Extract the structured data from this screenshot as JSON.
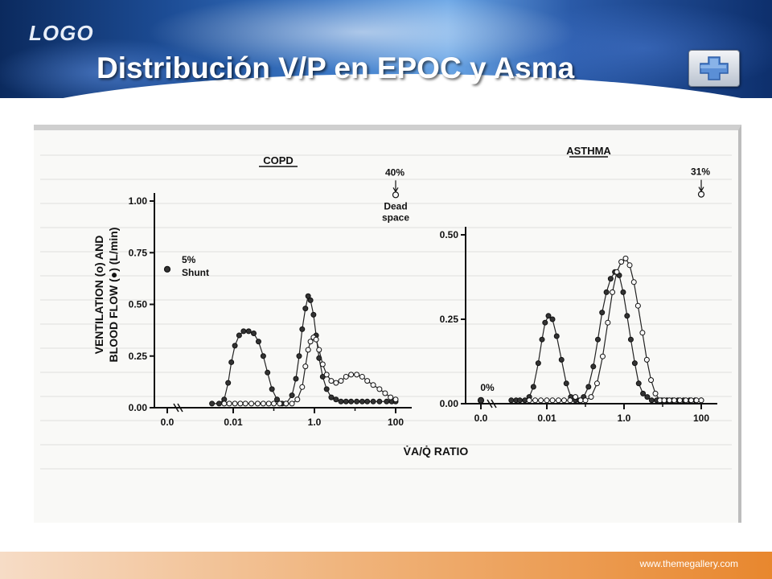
{
  "header": {
    "logo": "LOGO",
    "title": "Distribución V/P en EPOC y Asma",
    "button_icon": "plus-icon"
  },
  "footer": {
    "url": "www.themegallery.com"
  },
  "colors": {
    "accent_blue": "#1d4d96",
    "footer_orange": "#e8872e"
  },
  "chart_data": [
    {
      "type": "line",
      "title": "COPD",
      "ylabel": "VENTILATION (o) AND BLOOD FLOW (●) (L/min)",
      "xlabel": "V̇A/Q̇ RATIO",
      "x_scale": "log",
      "x_ticks": [
        "0.0",
        "0.01",
        "1.0",
        "100"
      ],
      "y_ticks": [
        "0.00",
        "0.25",
        "0.50",
        "0.75",
        "1.00"
      ],
      "ylim": [
        0,
        1.0
      ],
      "annotations": [
        {
          "text": "5%",
          "text2": "Shunt",
          "x": 0,
          "y": 0.67,
          "marker": "filled"
        },
        {
          "text": "40%",
          "text2": "Dead",
          "text3": "space",
          "x": 100,
          "y": 1.03,
          "marker": "open"
        }
      ],
      "series": [
        {
          "marker": "filled",
          "points": [
            [
              0.003,
              0.02
            ],
            [
              0.0045,
              0.02
            ],
            [
              0.006,
              0.04
            ],
            [
              0.0075,
              0.12
            ],
            [
              0.009,
              0.22
            ],
            [
              0.011,
              0.3
            ],
            [
              0.014,
              0.35
            ],
            [
              0.018,
              0.37
            ],
            [
              0.024,
              0.37
            ],
            [
              0.032,
              0.36
            ],
            [
              0.042,
              0.32
            ],
            [
              0.055,
              0.25
            ],
            [
              0.07,
              0.17
            ],
            [
              0.09,
              0.09
            ],
            [
              0.12,
              0.04
            ],
            [
              0.16,
              0.02
            ],
            [
              0.2,
              0.02
            ],
            [
              0.28,
              0.06
            ],
            [
              0.35,
              0.14
            ],
            [
              0.42,
              0.25
            ],
            [
              0.5,
              0.38
            ],
            [
              0.6,
              0.48
            ],
            [
              0.7,
              0.54
            ],
            [
              0.8,
              0.52
            ],
            [
              0.95,
              0.45
            ],
            [
              1.1,
              0.35
            ],
            [
              1.3,
              0.24
            ],
            [
              1.6,
              0.15
            ],
            [
              2.0,
              0.09
            ],
            [
              2.6,
              0.05
            ],
            [
              3.4,
              0.04
            ],
            [
              4.5,
              0.03
            ],
            [
              6,
              0.03
            ],
            [
              8,
              0.03
            ],
            [
              11,
              0.03
            ],
            [
              15,
              0.03
            ],
            [
              20,
              0.03
            ],
            [
              28,
              0.03
            ],
            [
              40,
              0.03
            ],
            [
              60,
              0.03
            ],
            [
              80,
              0.03
            ],
            [
              100,
              0.03
            ]
          ]
        },
        {
          "marker": "open",
          "points": [
            [
              0.006,
              0.02
            ],
            [
              0.008,
              0.02
            ],
            [
              0.011,
              0.02
            ],
            [
              0.015,
              0.02
            ],
            [
              0.02,
              0.02
            ],
            [
              0.028,
              0.02
            ],
            [
              0.04,
              0.02
            ],
            [
              0.055,
              0.02
            ],
            [
              0.075,
              0.02
            ],
            [
              0.1,
              0.02
            ],
            [
              0.14,
              0.02
            ],
            [
              0.2,
              0.02
            ],
            [
              0.28,
              0.02
            ],
            [
              0.38,
              0.04
            ],
            [
              0.5,
              0.1
            ],
            [
              0.6,
              0.2
            ],
            [
              0.7,
              0.28
            ],
            [
              0.8,
              0.32
            ],
            [
              0.95,
              0.34
            ],
            [
              1.1,
              0.33
            ],
            [
              1.3,
              0.28
            ],
            [
              1.6,
              0.21
            ],
            [
              2.0,
              0.16
            ],
            [
              2.6,
              0.13
            ],
            [
              3.4,
              0.12
            ],
            [
              4.5,
              0.13
            ],
            [
              6,
              0.15
            ],
            [
              8,
              0.16
            ],
            [
              11,
              0.16
            ],
            [
              15,
              0.15
            ],
            [
              20,
              0.13
            ],
            [
              28,
              0.11
            ],
            [
              40,
              0.09
            ],
            [
              55,
              0.07
            ],
            [
              75,
              0.05
            ],
            [
              100,
              0.04
            ]
          ]
        }
      ]
    },
    {
      "type": "line",
      "title": "ASTHMA",
      "x_scale": "log",
      "x_ticks": [
        "0.0",
        "0.01",
        "1.0",
        "100"
      ],
      "y_ticks": [
        "0.00",
        "0.25",
        "0.50"
      ],
      "ylim": [
        0,
        0.5
      ],
      "annotations": [
        {
          "text": "0%",
          "x": 0,
          "y": 0.01,
          "marker": "filled"
        },
        {
          "text": "31%",
          "x": 100,
          "y": 0.62,
          "marker": "open"
        }
      ],
      "series": [
        {
          "marker": "filled",
          "points": [
            [
              0.0012,
              0.01
            ],
            [
              0.0016,
              0.01
            ],
            [
              0.002,
              0.01
            ],
            [
              0.0027,
              0.01
            ],
            [
              0.0035,
              0.02
            ],
            [
              0.0045,
              0.05
            ],
            [
              0.006,
              0.12
            ],
            [
              0.0075,
              0.19
            ],
            [
              0.009,
              0.24
            ],
            [
              0.011,
              0.26
            ],
            [
              0.014,
              0.25
            ],
            [
              0.018,
              0.2
            ],
            [
              0.024,
              0.13
            ],
            [
              0.032,
              0.06
            ],
            [
              0.042,
              0.02
            ],
            [
              0.055,
              0.01
            ],
            [
              0.07,
              0.01
            ],
            [
              0.09,
              0.02
            ],
            [
              0.12,
              0.05
            ],
            [
              0.16,
              0.11
            ],
            [
              0.21,
              0.19
            ],
            [
              0.27,
              0.27
            ],
            [
              0.35,
              0.33
            ],
            [
              0.45,
              0.37
            ],
            [
              0.58,
              0.39
            ],
            [
              0.75,
              0.38
            ],
            [
              0.95,
              0.33
            ],
            [
              1.2,
              0.26
            ],
            [
              1.5,
              0.19
            ],
            [
              1.9,
              0.12
            ],
            [
              2.4,
              0.06
            ],
            [
              3.1,
              0.03
            ],
            [
              4,
              0.02
            ],
            [
              5.2,
              0.01
            ],
            [
              7,
              0.01
            ],
            [
              9.5,
              0.01
            ],
            [
              13,
              0.01
            ],
            [
              18,
              0.01
            ],
            [
              25,
              0.01
            ],
            [
              35,
              0.01
            ],
            [
              50,
              0.01
            ],
            [
              70,
              0.01
            ],
            [
              100,
              0.01
            ]
          ]
        },
        {
          "marker": "open",
          "points": [
            [
              0.0035,
              0.01
            ],
            [
              0.005,
              0.01
            ],
            [
              0.007,
              0.01
            ],
            [
              0.01,
              0.01
            ],
            [
              0.014,
              0.01
            ],
            [
              0.02,
              0.01
            ],
            [
              0.028,
              0.01
            ],
            [
              0.04,
              0.01
            ],
            [
              0.055,
              0.02
            ],
            [
              0.075,
              0.01
            ],
            [
              0.1,
              0.01
            ],
            [
              0.14,
              0.02
            ],
            [
              0.2,
              0.06
            ],
            [
              0.28,
              0.14
            ],
            [
              0.38,
              0.24
            ],
            [
              0.5,
              0.33
            ],
            [
              0.65,
              0.39
            ],
            [
              0.85,
              0.42
            ],
            [
              1.1,
              0.43
            ],
            [
              1.4,
              0.41
            ],
            [
              1.8,
              0.36
            ],
            [
              2.3,
              0.29
            ],
            [
              3,
              0.21
            ],
            [
              3.9,
              0.13
            ],
            [
              5,
              0.07
            ],
            [
              6.5,
              0.03
            ],
            [
              8.5,
              0.01
            ],
            [
              11,
              0.01
            ],
            [
              15,
              0.01
            ],
            [
              20,
              0.01
            ],
            [
              28,
              0.01
            ],
            [
              40,
              0.01
            ],
            [
              55,
              0.01
            ],
            [
              75,
              0.01
            ],
            [
              100,
              0.01
            ]
          ]
        }
      ]
    }
  ]
}
